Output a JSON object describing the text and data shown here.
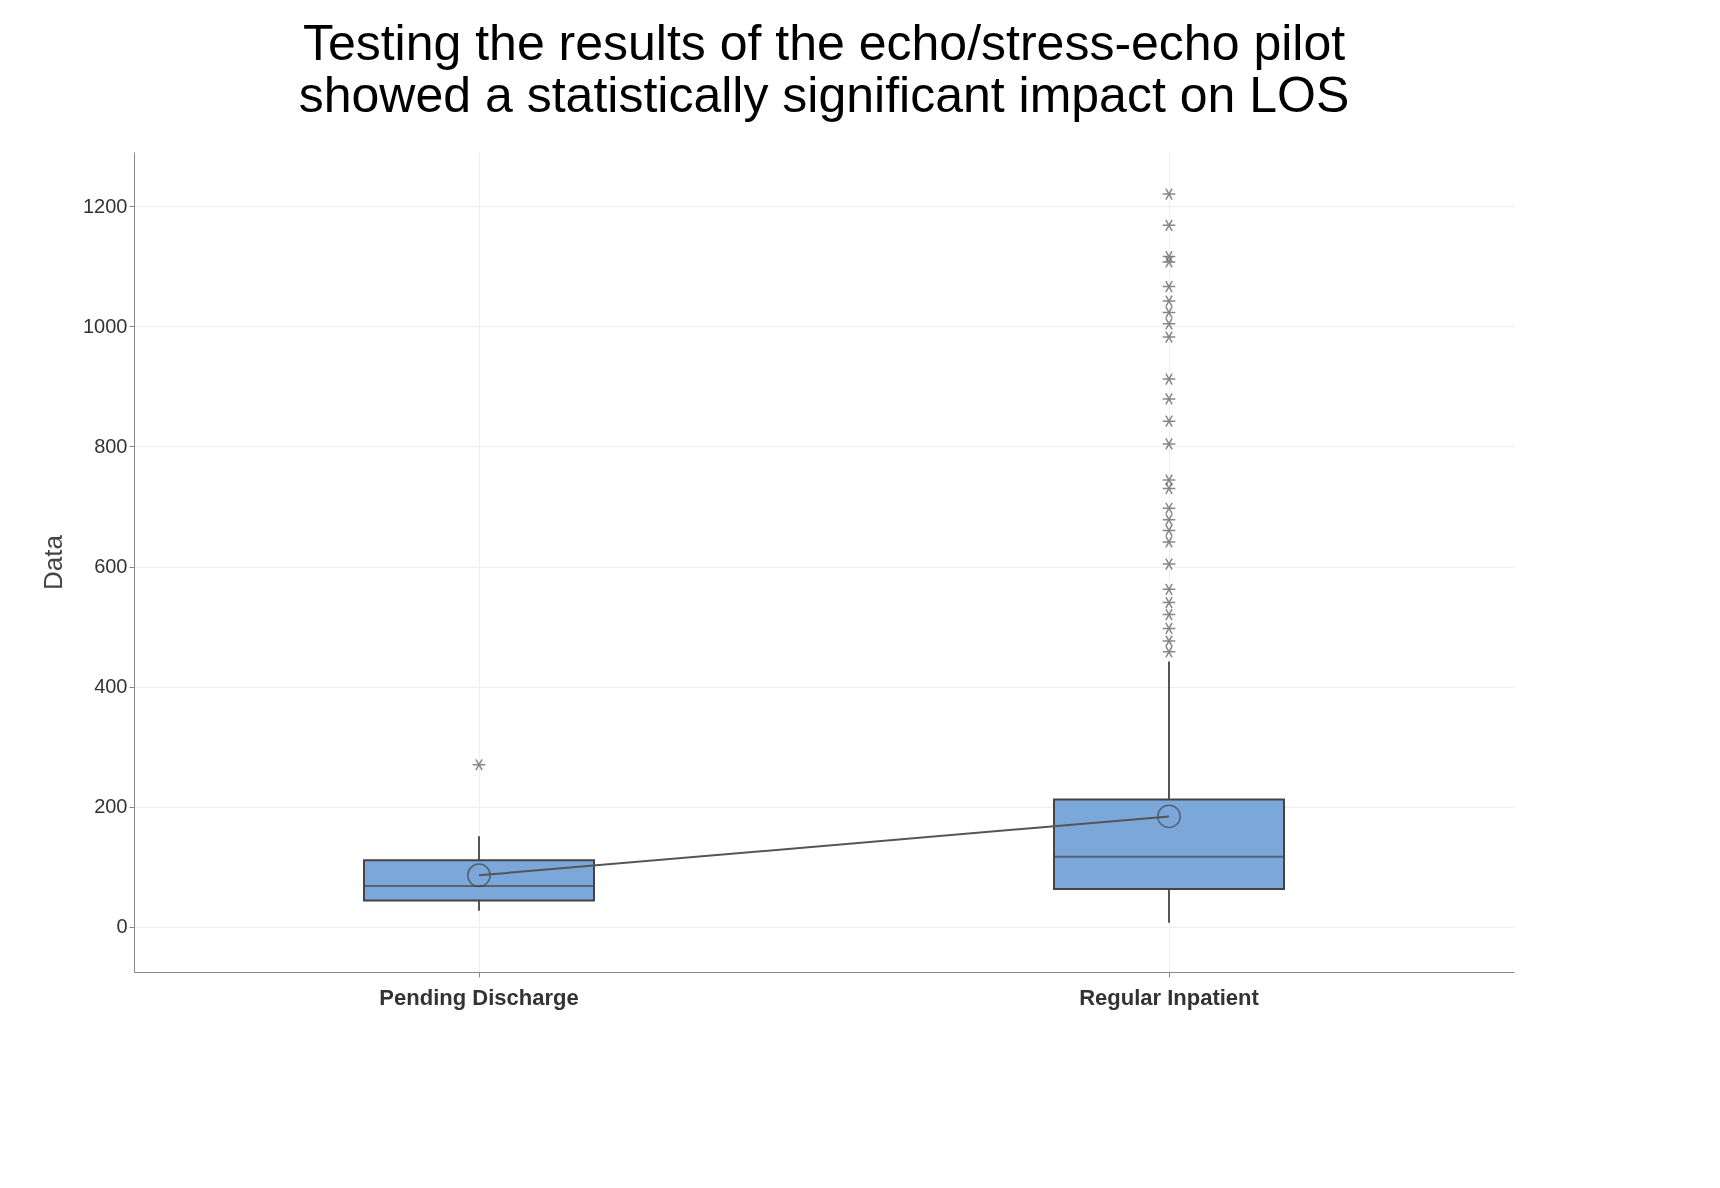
{
  "chart_data": {
    "type": "box",
    "title": "Testing the results of the echo/stress-echo pilot showed a statistically significant impact on LOS",
    "ylabel": "Data",
    "categories": [
      "Pending Discharge",
      "Regular Inpatient"
    ],
    "series": [
      {
        "type": "box",
        "color": "#7ba7db",
        "boxes": [
          {
            "low": 27,
            "q1": 44,
            "median": 68,
            "q3": 111,
            "high": 151,
            "mean": 86,
            "outliers": [
              270
            ]
          },
          {
            "low": 7,
            "q1": 63,
            "median": 117,
            "q3": 212,
            "high": 442,
            "mean": 184,
            "outliers": [
              458,
              476,
              497,
              520,
              540,
              562,
              604,
              641,
              660,
              678,
              697,
              730,
              744,
              804,
              842,
              879,
              912,
              982,
              1004,
              1023,
              1042,
              1066,
              1107,
              1116,
              1168,
              1220
            ]
          }
        ]
      },
      {
        "type": "line",
        "color": "#555555",
        "values": [
          86,
          184
        ]
      }
    ],
    "ylim": [
      -75,
      1290
    ],
    "yticks": [
      0,
      200,
      400,
      600,
      800,
      1000,
      1200
    ],
    "grid": true
  }
}
